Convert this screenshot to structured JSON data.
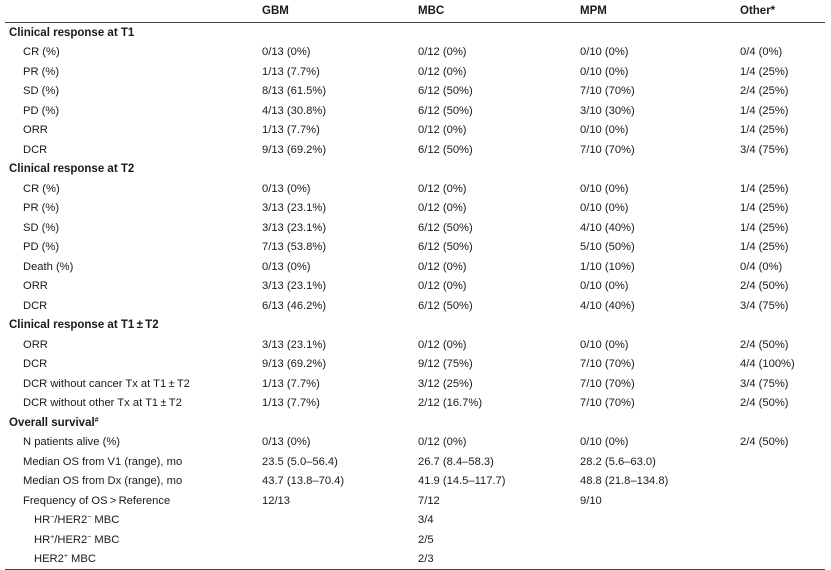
{
  "header": {
    "col0": "",
    "gbm": "GBM",
    "mbc": "MBC",
    "mpm": "MPM",
    "other": "Other*"
  },
  "sections": {
    "t1": {
      "title": "Clinical response at T1",
      "rows": [
        {
          "label": "CR (%)",
          "gbm": "0/13 (0%)",
          "mbc": "0/12 (0%)",
          "mpm": "0/10 (0%)",
          "other": "0/4 (0%)"
        },
        {
          "label": "PR (%)",
          "gbm": "1/13 (7.7%)",
          "mbc": "0/12 (0%)",
          "mpm": "0/10 (0%)",
          "other": "1/4 (25%)"
        },
        {
          "label": "SD (%)",
          "gbm": "8/13 (61.5%)",
          "mbc": "6/12 (50%)",
          "mpm": "7/10 (70%)",
          "other": "2/4 (25%)"
        },
        {
          "label": "PD (%)",
          "gbm": "4/13 (30.8%)",
          "mbc": "6/12 (50%)",
          "mpm": "3/10 (30%)",
          "other": "1/4 (25%)"
        },
        {
          "label": "ORR",
          "gbm": "1/13 (7.7%)",
          "mbc": "0/12 (0%)",
          "mpm": "0/10 (0%)",
          "other": "1/4 (25%)"
        },
        {
          "label": "DCR",
          "gbm": "9/13 (69.2%)",
          "mbc": "6/12 (50%)",
          "mpm": "7/10 (70%)",
          "other": "3/4 (75%)"
        }
      ]
    },
    "t2": {
      "title": "Clinical response at T2",
      "rows": [
        {
          "label": "CR (%)",
          "gbm": "0/13 (0%)",
          "mbc": "0/12 (0%)",
          "mpm": "0/10 (0%)",
          "other": "1/4 (25%)"
        },
        {
          "label": "PR (%)",
          "gbm": "3/13 (23.1%)",
          "mbc": "0/12 (0%)",
          "mpm": "0/10 (0%)",
          "other": "1/4 (25%)"
        },
        {
          "label": "SD (%)",
          "gbm": "3/13 (23.1%)",
          "mbc": "6/12 (50%)",
          "mpm": "4/10 (40%)",
          "other": "1/4 (25%)"
        },
        {
          "label": "PD (%)",
          "gbm": "7/13 (53.8%)",
          "mbc": "6/12 (50%)",
          "mpm": "5/10 (50%)",
          "other": "1/4 (25%)"
        },
        {
          "label": "Death (%)",
          "gbm": "0/13 (0%)",
          "mbc": "0/12 (0%)",
          "mpm": "1/10 (10%)",
          "other": "0/4 (0%)"
        },
        {
          "label": "ORR",
          "gbm": "3/13 (23.1%)",
          "mbc": "0/12 (0%)",
          "mpm": "0/10 (0%)",
          "other": "2/4 (50%)"
        },
        {
          "label": "DCR",
          "gbm": "6/13 (46.2%)",
          "mbc": "6/12 (50%)",
          "mpm": "4/10 (40%)",
          "other": "3/4 (75%)"
        }
      ]
    },
    "t1t2": {
      "title": "Clinical response at T1 ± T2",
      "rows": [
        {
          "label": "ORR",
          "gbm": "3/13 (23.1%)",
          "mbc": "0/12 (0%)",
          "mpm": "0/10 (0%)",
          "other": "2/4 (50%)"
        },
        {
          "label": "DCR",
          "gbm": "9/13 (69.2%)",
          "mbc": "9/12 (75%)",
          "mpm": "7/10 (70%)",
          "other": "4/4 (100%)"
        },
        {
          "label": "DCR without cancer Tx at T1 ± T2",
          "gbm": "1/13 (7.7%)",
          "mbc": "3/12 (25%)",
          "mpm": "7/10 (70%)",
          "other": "3/4 (75%)"
        },
        {
          "label": "DCR without other Tx at T1 ± T2",
          "gbm": "1/13 (7.7%)",
          "mbc": "2/12 (16.7%)",
          "mpm": "7/10 (70%)",
          "other": "2/4 (50%)"
        }
      ]
    },
    "os": {
      "title": "Overall survival",
      "title_sup": "#",
      "rows": [
        {
          "label": "N patients alive (%)",
          "gbm": "0/13 (0%)",
          "mbc": "0/12 (0%)",
          "mpm": "0/10 (0%)",
          "other": "2/4 (50%)"
        },
        {
          "label": "Median OS from V1 (range), mo",
          "gbm": "23.5 (5.0–56.4)",
          "mbc": "26.7 (8.4–58.3)",
          "mpm": "28.2 (5.6–63.0)",
          "other": ""
        },
        {
          "label": "Median OS from Dx (range), mo",
          "gbm": "43.7 (13.8–70.4)",
          "mbc": "41.9 (14.5–117.7)",
          "mpm": "48.8 (21.8–134.8)",
          "other": ""
        },
        {
          "label": "Frequency of OS > Reference",
          "gbm": "12/13",
          "mbc": "7/12",
          "mpm": "9/10",
          "other": ""
        }
      ],
      "subrows": [
        {
          "prefix": "HR",
          "sup1": "−",
          "mid": "/HER2",
          "sup2": "−",
          "suffix": " MBC",
          "mbc": "3/4"
        },
        {
          "prefix": "HR",
          "sup1": "+",
          "mid": "/HER2",
          "sup2": "−",
          "suffix": " MBC",
          "mbc": "2/5"
        },
        {
          "prefix": "HER2",
          "sup1": "+",
          "mid": "",
          "sup2": "",
          "suffix": " MBC",
          "mbc": "2/3"
        }
      ]
    }
  }
}
